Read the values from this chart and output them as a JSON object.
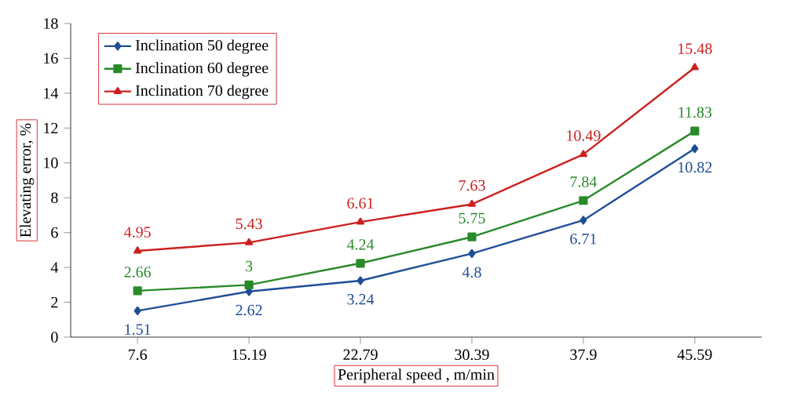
{
  "chart_data": {
    "type": "line",
    "categories": [
      "7.6",
      "15.19",
      "22.79",
      "30.39",
      "37.9",
      "45.59"
    ],
    "xlabel": "Peripheral speed , m/min",
    "ylabel": "Elevating error, %",
    "ylim": [
      0,
      18
    ],
    "yticks": [
      0,
      2,
      4,
      6,
      8,
      10,
      12,
      14,
      16,
      18
    ],
    "grid": false,
    "legend": "top left",
    "data_labels": true,
    "line_style": "solid",
    "series": [
      {
        "name": "Inclination 50 degree",
        "color": "#1f4e96",
        "marker": "diamond",
        "values": [
          1.51,
          2.62,
          3.24,
          4.8,
          6.71,
          10.82
        ]
      },
      {
        "name": "Inclination 60 degree",
        "color": "#2a8a2a",
        "marker": "square",
        "values": [
          2.66,
          3,
          4.24,
          5.75,
          7.84,
          11.83
        ]
      },
      {
        "name": "Inclination 70 degree",
        "color": "#cc2020",
        "marker": "triangle",
        "values": [
          4.95,
          5.43,
          6.61,
          7.63,
          10.49,
          15.48
        ]
      }
    ]
  }
}
